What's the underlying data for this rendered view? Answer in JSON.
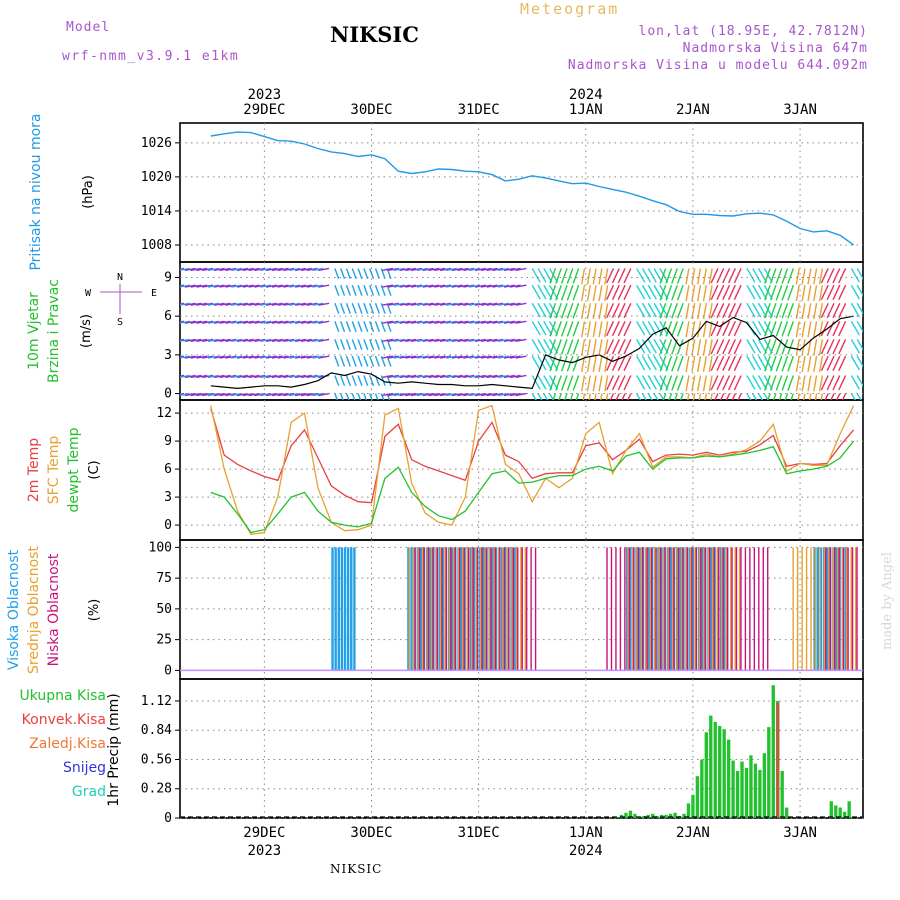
{
  "header": {
    "model_label": "Model",
    "model_name": "wrf-nmm_v3.9.1  e1km",
    "title": "NIKSIC",
    "meteogram_label": "Meteogram",
    "coords": "lon,lat (18.95E, 42.7812N)",
    "altitude": "Nadmorska Visina 647m",
    "model_altitude": "Nadmorska Visina u modelu 644.092m"
  },
  "footer_label": "NIKSIC",
  "watermark": "made by Angel",
  "colors": {
    "pressure": "#2299e6",
    "temp2m": "#e84040",
    "sfc_temp": "#e8a030",
    "dewpoint": "#22c22e",
    "high_cloud": "#22a0e8",
    "mid_cloud": "#e8a030",
    "low_cloud": "#c8147a",
    "total_precip": "#22c22e",
    "convective_precip": "#e84040",
    "freezing_rain": "#f07830",
    "snow": "#3333dd",
    "graupel": "#22ccc0",
    "header_purple": "#aa55cc",
    "header_orange": "#e8b860"
  },
  "time_axis": {
    "top_years": [
      "2023",
      "2024"
    ],
    "dates": [
      "29DEC",
      "30DEC",
      "31DEC",
      "1JAN",
      "2JAN",
      "3JAN"
    ],
    "bottom_years": [
      "2023",
      "2024"
    ]
  },
  "chart_data": [
    {
      "type": "line",
      "panel": "pressure",
      "ylabel": "Pritisak na nivou mora",
      "unit": "(hPa)",
      "yticks": [
        "1026",
        "1020",
        "1014",
        "1008"
      ],
      "ylim": [
        1005,
        1029.5
      ],
      "x_hours": [
        0,
        3,
        6,
        9,
        12,
        15,
        18,
        21,
        24,
        27,
        30,
        33,
        36,
        39,
        42,
        45,
        48,
        51,
        54,
        57,
        60,
        63,
        66,
        69,
        72,
        75,
        78,
        81,
        84,
        87,
        90,
        93,
        96,
        99,
        102,
        105,
        108,
        111,
        114,
        117,
        120,
        123,
        126,
        129,
        132,
        135,
        138,
        141,
        144
      ],
      "series": [
        {
          "values": [
            1027.2,
            1027.6,
            1027.9,
            1027.8,
            1027.1,
            1026.4,
            1026.3,
            1025.8,
            1025.0,
            1024.4,
            1024.1,
            1023.6,
            1023.9,
            1023.2,
            1021.0,
            1020.6,
            1020.9,
            1021.4,
            1021.3,
            1021.0,
            1020.9,
            1020.4,
            1019.3,
            1019.6,
            1020.2,
            1019.8,
            1019.3,
            1018.8,
            1018.9,
            1018.3,
            1017.8,
            1017.3,
            1016.6,
            1015.8,
            1015.1,
            1013.9,
            1013.4,
            1013.4,
            1013.2,
            1013.1,
            1013.5,
            1013.6,
            1013.3,
            1012.2,
            1010.9,
            1010.3,
            1010.5,
            1009.7,
            1008.0
          ]
        }
      ]
    },
    {
      "type": "line",
      "panel": "wind",
      "ylabel": "10m Vjetar Brzina i Pravac",
      "unit": "(m/s)",
      "compass_labels": [
        "N",
        "E",
        "S",
        "W"
      ],
      "yticks": [
        "0",
        "3",
        "6",
        "9"
      ],
      "ylim": [
        -0.5,
        10.2
      ],
      "x_hours": [
        0,
        3,
        6,
        9,
        12,
        15,
        18,
        21,
        24,
        27,
        30,
        33,
        36,
        39,
        42,
        45,
        48,
        51,
        54,
        57,
        60,
        63,
        66,
        69,
        72,
        75,
        78,
        81,
        84,
        87,
        90,
        93,
        96,
        99,
        102,
        105,
        108,
        111,
        114,
        117,
        120,
        123,
        126,
        129,
        132,
        135,
        138,
        141,
        144
      ],
      "series": [
        {
          "values": [
            0.6,
            0.5,
            0.4,
            0.5,
            0.6,
            0.6,
            0.5,
            0.7,
            1.0,
            1.6,
            1.4,
            1.7,
            1.5,
            0.9,
            0.8,
            0.9,
            0.8,
            0.7,
            0.7,
            0.6,
            0.6,
            0.7,
            0.6,
            0.5,
            0.4,
            3.0,
            2.6,
            2.4,
            2.8,
            3.0,
            2.5,
            2.9,
            3.5,
            4.6,
            5.1,
            3.7,
            4.3,
            5.6,
            5.2,
            5.9,
            5.5,
            4.2,
            4.5,
            3.6,
            3.4,
            4.3,
            5.0,
            5.8,
            6.0
          ]
        }
      ]
    },
    {
      "type": "line",
      "panel": "temperature",
      "ylabel": "2m Temp / SFC Temp / dewpt Temp",
      "unit": "(C)",
      "yticks": [
        "0",
        "3",
        "6",
        "9",
        "12"
      ],
      "ylim": [
        -1.6,
        13.4
      ],
      "x_hours": [
        0,
        3,
        6,
        9,
        12,
        15,
        18,
        21,
        24,
        27,
        30,
        33,
        36,
        39,
        42,
        45,
        48,
        51,
        54,
        57,
        60,
        63,
        66,
        69,
        72,
        75,
        78,
        81,
        84,
        87,
        90,
        93,
        96,
        99,
        102,
        105,
        108,
        111,
        114,
        117,
        120,
        123,
        126,
        129,
        132,
        135,
        138,
        141,
        144
      ],
      "series": [
        {
          "name": "2m Temp",
          "values": [
            12.5,
            7.5,
            6.5,
            5.8,
            5.2,
            4.8,
            8.5,
            10.2,
            7.2,
            4.2,
            3.2,
            2.5,
            2.4,
            9.5,
            10.8,
            7.0,
            6.3,
            5.8,
            5.3,
            4.8,
            9.0,
            11.0,
            7.5,
            6.8,
            5.0,
            5.5,
            5.6,
            5.6,
            8.5,
            8.8,
            7.0,
            8.0,
            9.2,
            6.8,
            7.5,
            7.6,
            7.5,
            7.8,
            7.5,
            7.8,
            7.9,
            8.6,
            9.6,
            6.3,
            6.6,
            6.5,
            6.6,
            8.5,
            10.2
          ]
        },
        {
          "name": "SFC Temp",
          "values": [
            12.8,
            6.0,
            1.5,
            -1.0,
            -0.8,
            3.0,
            11.0,
            12.0,
            4.0,
            0.3,
            -0.6,
            -0.5,
            0.0,
            11.8,
            12.5,
            4.5,
            1.3,
            0.3,
            0.0,
            3.0,
            12.3,
            12.8,
            6.5,
            5.5,
            2.5,
            5.0,
            4.0,
            5.0,
            9.8,
            11.0,
            5.5,
            8.0,
            9.8,
            6.2,
            7.3,
            7.3,
            7.2,
            7.6,
            7.3,
            7.6,
            8.1,
            9.0,
            10.8,
            5.8,
            6.6,
            6.4,
            6.4,
            9.8,
            12.8
          ]
        },
        {
          "name": "dewpt Temp",
          "values": [
            3.5,
            3.0,
            1.2,
            -0.8,
            -0.5,
            1.2,
            3.0,
            3.5,
            1.5,
            0.3,
            0.0,
            -0.2,
            0.2,
            5.0,
            6.2,
            3.5,
            2.0,
            1.0,
            0.6,
            1.5,
            3.5,
            5.5,
            5.8,
            4.5,
            4.6,
            5.0,
            5.3,
            5.3,
            6.0,
            6.3,
            5.8,
            7.4,
            7.8,
            6.0,
            7.1,
            7.2,
            7.2,
            7.4,
            7.3,
            7.5,
            7.7,
            8.0,
            8.4,
            5.5,
            5.8,
            6.0,
            6.3,
            7.2,
            9.0
          ]
        }
      ]
    },
    {
      "type": "bar",
      "panel": "clouds",
      "ylabel": "Visoka Oblacnost / Srednja Oblacnost / Niska Oblacnost",
      "unit": "(%)",
      "yticks": [
        "0",
        "25",
        "50",
        "75",
        "100"
      ],
      "ylim": [
        -7,
        106
      ],
      "series": [
        {
          "name": "Visoka Oblacnost",
          "segments": [
            {
              "from_hour": 27.0,
              "to_hour": 32.0,
              "value": 100
            },
            {
              "from_hour": 44.0,
              "to_hour": 68.0,
              "value": 100
            },
            {
              "from_hour": 93.0,
              "to_hour": 116.0,
              "value": 100
            },
            {
              "from_hour": 135.0,
              "to_hour": 142.0,
              "value": 100
            }
          ]
        },
        {
          "name": "Srednja Oblacnost",
          "segments": [
            {
              "from_hour": 44.0,
              "to_hour": 70.0,
              "value": 100
            },
            {
              "from_hour": 93.0,
              "to_hour": 118.0,
              "value": 100
            },
            {
              "from_hour": 130.0,
              "to_hour": 144.0,
              "value": 100
            }
          ]
        },
        {
          "name": "Niska Oblacnost",
          "segments": [
            {
              "from_hour": 45.0,
              "to_hour": 72.0,
              "value": 100
            },
            {
              "from_hour": 88.0,
              "to_hour": 124.0,
              "value": 100
            },
            {
              "from_hour": 137.0,
              "to_hour": 144.0,
              "value": 100
            }
          ]
        }
      ]
    },
    {
      "type": "bar",
      "panel": "precipitation",
      "ylabel": "1hr Precip (mm)",
      "legend": [
        "Ukupna Kisa",
        "Konvek.Kisa",
        "Zaledj.Kisa",
        "Snijeg",
        "Grad"
      ],
      "yticks": [
        "0",
        "0.28",
        "0.56",
        "0.84",
        "1.12"
      ],
      "ylim": [
        0,
        1.33
      ],
      "x_hours": [
        91,
        92,
        93,
        94,
        95,
        96,
        97,
        98,
        99,
        100,
        101,
        102,
        103,
        104,
        105,
        106,
        107,
        108,
        109,
        110,
        111,
        112,
        113,
        114,
        115,
        116,
        117,
        118,
        119,
        120,
        121,
        122,
        123,
        124,
        125,
        126,
        127,
        128,
        129,
        130,
        131,
        132,
        133,
        134,
        135,
        136,
        137,
        138,
        139,
        140,
        141,
        142,
        143
      ],
      "series": [
        {
          "name": "Ukupna Kisa",
          "values": [
            0.01,
            0.03,
            0.05,
            0.07,
            0.04,
            0.01,
            0.02,
            0.03,
            0.04,
            0.02,
            0.03,
            0.03,
            0.04,
            0.05,
            0.02,
            0.04,
            0.14,
            0.22,
            0.4,
            0.56,
            0.82,
            0.98,
            0.92,
            0.88,
            0.85,
            0.75,
            0.55,
            0.45,
            0.54,
            0.48,
            0.6,
            0.52,
            0.46,
            0.62,
            0.87,
            1.27,
            1.12,
            0.45,
            0.1,
            0.0,
            0.0,
            0.0,
            0.0,
            0.0,
            0.0,
            0.0,
            0.0,
            0.0,
            0.16,
            0.12,
            0.1,
            0.06,
            0.16
          ]
        },
        {
          "name": "Konvek.Kisa",
          "values": [
            0,
            0,
            0,
            0,
            0,
            0,
            0,
            0,
            0,
            0,
            0,
            0,
            0,
            0,
            0,
            0,
            0,
            0,
            0,
            0,
            0,
            0,
            0,
            0,
            0,
            0,
            0,
            0,
            0,
            0,
            0,
            0,
            0,
            0,
            0,
            0,
            1.1,
            0,
            0,
            0,
            0,
            0,
            0,
            0,
            0,
            0,
            0,
            0,
            0,
            0,
            0,
            0,
            0
          ]
        }
      ]
    }
  ]
}
